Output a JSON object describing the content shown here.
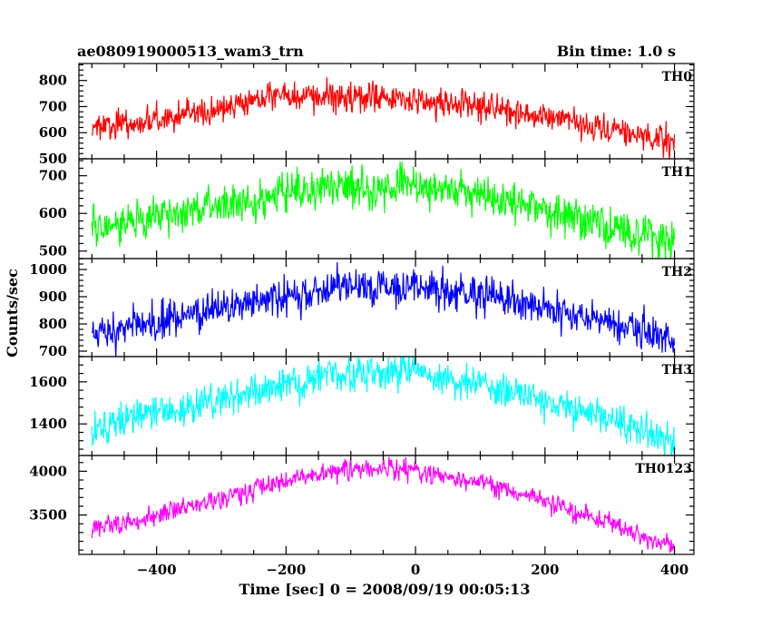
{
  "chart_data": {
    "type": "line",
    "title_left": "ae080919000513_wam3_trn",
    "title_right": "Bin time: 1.0 s",
    "xlabel": "Time [sec] 0 = 2008/09/19 00:05:13",
    "ylabel": "Counts/sec",
    "xlim": [
      -520,
      430
    ],
    "x_ticks": [
      -400,
      -200,
      0,
      200,
      400
    ],
    "x_tick_labels": [
      "−400",
      "−200",
      "0",
      "200",
      "400"
    ],
    "x_data_range": [
      -500,
      400
    ],
    "grid": false,
    "panels": [
      {
        "name": "TH0",
        "color": "#ff0000",
        "ylim": [
          500,
          865
        ],
        "y_ticks": [
          500,
          600,
          700,
          800
        ],
        "trend": [
          [
            -500,
            620
          ],
          [
            -400,
            650
          ],
          [
            -300,
            690
          ],
          [
            -230,
            745
          ],
          [
            -100,
            735
          ],
          [
            0,
            720
          ],
          [
            100,
            700
          ],
          [
            200,
            660
          ],
          [
            300,
            610
          ],
          [
            400,
            565
          ]
        ],
        "noise": 28
      },
      {
        "name": "TH1",
        "color": "#00ff00",
        "ylim": [
          480,
          745
        ],
        "y_ticks": [
          500,
          600,
          700
        ],
        "trend": [
          [
            -500,
            560
          ],
          [
            -400,
            590
          ],
          [
            -300,
            620
          ],
          [
            -200,
            655
          ],
          [
            -100,
            670
          ],
          [
            0,
            668
          ],
          [
            100,
            650
          ],
          [
            200,
            610
          ],
          [
            300,
            570
          ],
          [
            400,
            530
          ]
        ],
        "noise": 28
      },
      {
        "name": "TH2",
        "color": "#0000ff",
        "ylim": [
          680,
          1040
        ],
        "y_ticks": [
          700,
          800,
          900,
          1000
        ],
        "trend": [
          [
            -500,
            770
          ],
          [
            -400,
            810
          ],
          [
            -300,
            860
          ],
          [
            -200,
            900
          ],
          [
            -100,
            930
          ],
          [
            0,
            935
          ],
          [
            100,
            910
          ],
          [
            200,
            860
          ],
          [
            300,
            810
          ],
          [
            400,
            750
          ]
        ],
        "noise": 35
      },
      {
        "name": "TH3",
        "color": "#00ffff",
        "ylim": [
          1250,
          1720
        ],
        "y_ticks": [
          1400,
          1600
        ],
        "trend": [
          [
            -500,
            1370
          ],
          [
            -400,
            1450
          ],
          [
            -300,
            1520
          ],
          [
            -200,
            1590
          ],
          [
            -100,
            1640
          ],
          [
            0,
            1640
          ],
          [
            100,
            1590
          ],
          [
            200,
            1510
          ],
          [
            300,
            1420
          ],
          [
            400,
            1310
          ]
        ],
        "noise": 42
      },
      {
        "name": "TH0123",
        "color": "#ff00ff",
        "ylim": [
          3050,
          4180
        ],
        "y_ticks": [
          3500,
          4000
        ],
        "trend": [
          [
            -500,
            3330
          ],
          [
            -400,
            3500
          ],
          [
            -300,
            3700
          ],
          [
            -200,
            3900
          ],
          [
            -100,
            4020
          ],
          [
            0,
            4010
          ],
          [
            100,
            3880
          ],
          [
            200,
            3660
          ],
          [
            300,
            3400
          ],
          [
            400,
            3130
          ]
        ],
        "noise": 60
      }
    ]
  }
}
